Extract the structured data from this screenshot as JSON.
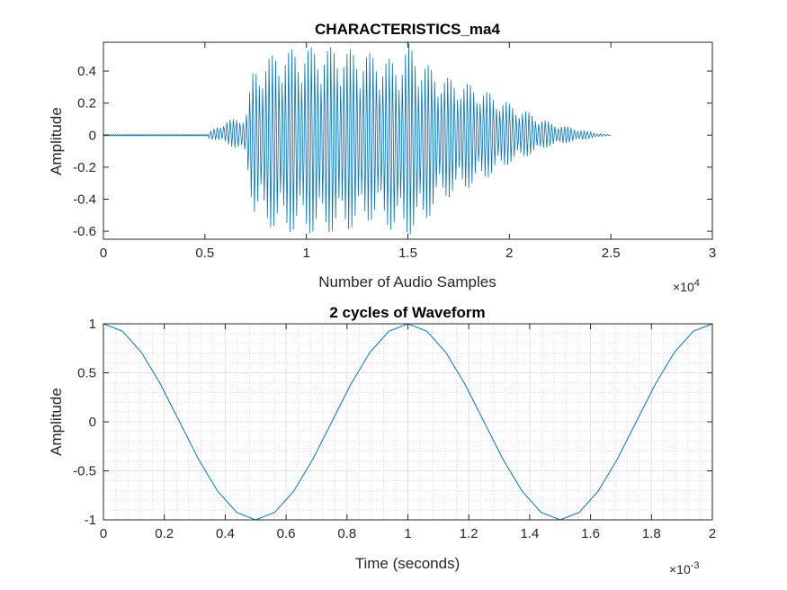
{
  "chart_data": [
    {
      "type": "line",
      "title": "CHARACTERISTICS_ma4",
      "xlabel": "Number of Audio Samples",
      "ylabel": "Amplitude",
      "xlim": [
        0,
        30000
      ],
      "ylim": [
        -0.65,
        0.58
      ],
      "x_ticks": [
        0,
        5000,
        10000,
        15000,
        20000,
        25000,
        30000
      ],
      "x_tick_labels": [
        "0",
        "0.5",
        "1",
        "1.5",
        "2",
        "2.5",
        "3"
      ],
      "x_exponent": {
        "base": "×10",
        "power": "4"
      },
      "y_ticks": [
        0.4,
        0.2,
        0,
        -0.2,
        -0.4,
        -0.6
      ],
      "y_tick_labels": [
        "0.4",
        "0.2",
        "0",
        "-0.2",
        "-0.4",
        "-0.6"
      ],
      "grid": false,
      "color": "#0072BD",
      "series": [
        {
          "x_range": [
            0,
            25000
          ],
          "silence_until": 5200,
          "envelope_top": [
            [
              5200,
              0.02
            ],
            [
              6000,
              0.09
            ],
            [
              7000,
              0.12
            ],
            [
              7400,
              0.42
            ],
            [
              8500,
              0.52
            ],
            [
              10000,
              0.55
            ],
            [
              11500,
              0.55
            ],
            [
              13000,
              0.52
            ],
            [
              14000,
              0.48
            ],
            [
              14500,
              0.46
            ],
            [
              15000,
              0.58
            ],
            [
              15500,
              0.5
            ],
            [
              16500,
              0.38
            ],
            [
              18500,
              0.3
            ],
            [
              20000,
              0.2
            ],
            [
              22000,
              0.08
            ],
            [
              24000,
              0.02
            ],
            [
              25000,
              0.0
            ]
          ],
          "envelope_bottom": [
            [
              5200,
              -0.02
            ],
            [
              6000,
              -0.05
            ],
            [
              7000,
              -0.12
            ],
            [
              7400,
              -0.5
            ],
            [
              8500,
              -0.6
            ],
            [
              10500,
              -0.62
            ],
            [
              12000,
              -0.6
            ],
            [
              13500,
              -0.52
            ],
            [
              14500,
              -0.63
            ],
            [
              15500,
              -0.62
            ],
            [
              16500,
              -0.42
            ],
            [
              18500,
              -0.3
            ],
            [
              20000,
              -0.18
            ],
            [
              22000,
              -0.07
            ],
            [
              24000,
              -0.02
            ],
            [
              25000,
              0.0
            ]
          ]
        }
      ]
    },
    {
      "type": "line",
      "title": "2 cycles of Waveform",
      "xlabel": "Time (seconds)",
      "ylabel": "Amplitude",
      "xlim": [
        0,
        0.002
      ],
      "ylim": [
        -1,
        1
      ],
      "x_ticks": [
        0,
        0.0002,
        0.0004,
        0.0006,
        0.0008,
        0.001,
        0.0012,
        0.0014,
        0.0016,
        0.0018,
        0.002
      ],
      "x_tick_labels": [
        "0",
        "0.2",
        "0.4",
        "0.6",
        "0.8",
        "1",
        "1.2",
        "1.4",
        "1.6",
        "1.8",
        "2"
      ],
      "x_exponent": {
        "base": "×10",
        "power": "-3"
      },
      "y_ticks": [
        1,
        0.5,
        0,
        -0.5,
        -1
      ],
      "y_tick_labels": [
        "1",
        "0.5",
        "0",
        "-0.5",
        "-1"
      ],
      "grid": true,
      "minor_grid": true,
      "color": "#0072BD",
      "series": [
        {
          "function": "cos(2*pi*1000*t)",
          "frequency_hz": 1000,
          "samples_per_cycle": 16,
          "x": [
            0,
            6.25e-05,
            0.000125,
            0.0001875,
            0.00025,
            0.0003125,
            0.000375,
            0.0004375,
            0.0005,
            0.0005625,
            0.000625,
            0.0006875,
            0.00075,
            0.0008125,
            0.000875,
            0.0009375,
            0.001,
            0.0010625,
            0.001125,
            0.0011875,
            0.00125,
            0.0013125,
            0.001375,
            0.0014375,
            0.0015,
            0.0015625,
            0.001625,
            0.0016875,
            0.00175,
            0.0018125,
            0.001875,
            0.0019375,
            0.002
          ],
          "y": [
            1,
            0.9239,
            0.7071,
            0.3827,
            0,
            -0.3827,
            -0.7071,
            -0.9239,
            -1,
            -0.9239,
            -0.7071,
            -0.3827,
            0,
            0.3827,
            0.7071,
            0.9239,
            1,
            0.9239,
            0.7071,
            0.3827,
            0,
            -0.3827,
            -0.7071,
            -0.9239,
            -1,
            -0.9239,
            -0.7071,
            -0.3827,
            0,
            0.3827,
            0.7071,
            0.9239,
            1
          ]
        }
      ]
    }
  ]
}
